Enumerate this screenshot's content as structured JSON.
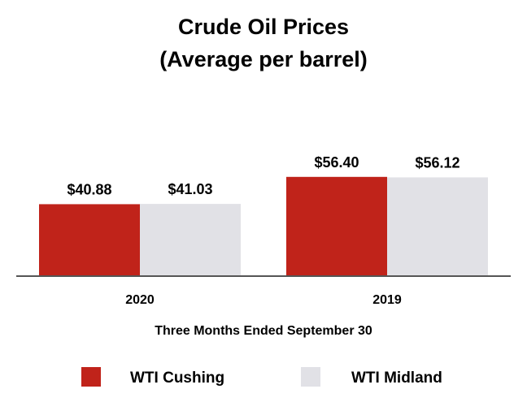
{
  "chart_data": {
    "type": "bar",
    "title": "Crude Oil Prices",
    "subtitle": "(Average per barrel)",
    "xlabel": "Three Months Ended September 30",
    "ylabel": "",
    "categories": [
      "2020",
      "2019"
    ],
    "series": [
      {
        "name": "WTI Cushing",
        "color": "#c0231a",
        "values": [
          40.88,
          56.4
        ],
        "labels": [
          "$40.88",
          "$56.40"
        ]
      },
      {
        "name": "WTI Midland",
        "color": "#e1e1e6",
        "values": [
          41.03,
          56.12
        ],
        "labels": [
          "$41.03",
          "$56.12"
        ]
      }
    ],
    "ylim": [
      0,
      60
    ],
    "grid": false,
    "legend_position": "bottom"
  }
}
